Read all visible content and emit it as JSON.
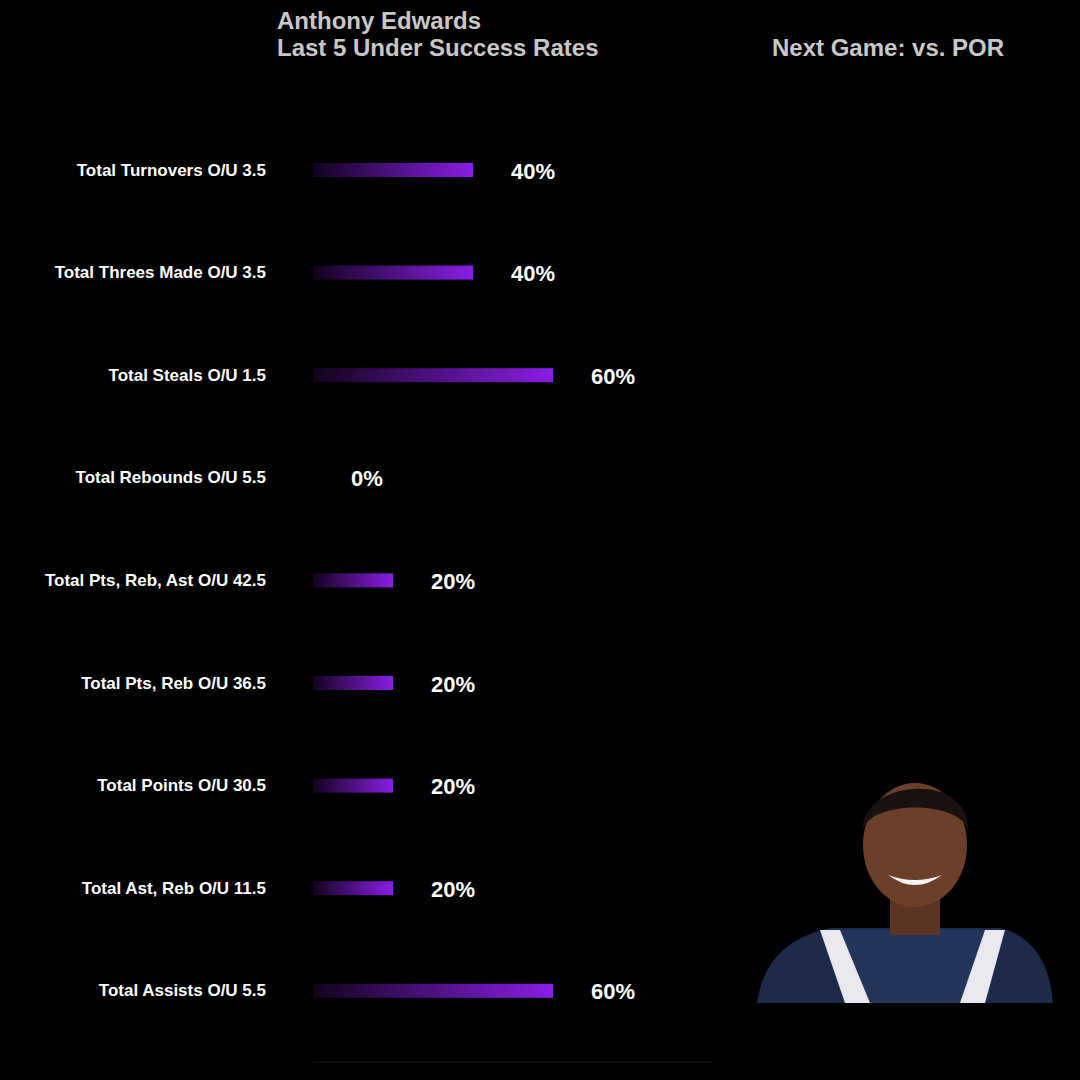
{
  "chart_data": {
    "type": "bar",
    "orientation": "horizontal",
    "title": "Anthony Edwards",
    "subtitle": "Last 5 Under Success Rates",
    "annotations": [
      "Next Game: vs. POR"
    ],
    "categories": [
      "Total Turnovers O/U 3.5",
      "Total Threes Made O/U 3.5",
      "Total Steals O/U 1.5",
      "Total Rebounds O/U 5.5",
      "Total Pts, Reb, Ast O/U 42.5",
      "Total Pts, Reb O/U 36.5",
      "Total Points O/U 30.5",
      "Total Ast, Reb O/U 11.5",
      "Total Assists O/U 5.5"
    ],
    "values": [
      40,
      40,
      60,
      0,
      20,
      20,
      20,
      20,
      60
    ],
    "value_labels": [
      "40%",
      "40%",
      "60%",
      "0%",
      "20%",
      "20%",
      "20%",
      "20%",
      "60%"
    ],
    "color": "#8a1ee6",
    "xlim": [
      0,
      100
    ],
    "xticks": [],
    "grid": false,
    "data_labels": true,
    "tick_labels": "y"
  }
}
